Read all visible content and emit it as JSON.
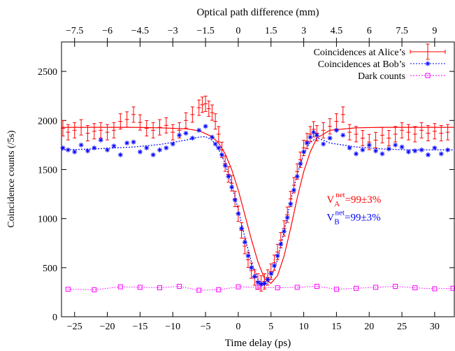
{
  "chart_data": {
    "type": "scatter",
    "top_axis_label": "Optical path difference (mm)",
    "xlabel": "Time delay (ps)",
    "ylabel": "Coincidence counts (/5s)",
    "xlim": [
      -27,
      33
    ],
    "ylim": [
      0,
      2800
    ],
    "x_ticks": [
      -25,
      -20,
      -15,
      -10,
      -5,
      0,
      5,
      10,
      15,
      20,
      25,
      30
    ],
    "x_tick_labels": [
      "−25",
      "−20",
      "−15",
      "−10",
      "−5",
      "0",
      "5",
      "10",
      "15",
      "20",
      "25",
      "30"
    ],
    "y_ticks": [
      0,
      500,
      1000,
      1500,
      2000,
      2500
    ],
    "y_tick_labels": [
      "0",
      "500",
      "1000",
      "1500",
      "2000",
      "2500"
    ],
    "top_ticks": [
      -7.5,
      -6,
      -4.5,
      -3,
      -1.5,
      0,
      1.5,
      3,
      4.5,
      6,
      7.5,
      9
    ],
    "top_tick_labels": [
      "−7.5",
      "−6",
      "−4.5",
      "−3",
      "−1.5",
      "0",
      "1.5",
      "3",
      "4.5",
      "6",
      "7.5",
      "9"
    ],
    "top_per_bottom": 0.3,
    "legend_position": "top-right",
    "series": [
      {
        "name": "Coincidences at Alice’s",
        "color": "#ff0000",
        "marker": "plus-errorbar",
        "line": "solid",
        "x": [
          -27,
          -26,
          -25,
          -24,
          -23,
          -22,
          -21,
          -20,
          -19,
          -18,
          -17,
          -16,
          -15,
          -14,
          -13,
          -12,
          -11,
          -10,
          -9,
          -8,
          -7,
          -6,
          -5.5,
          -5,
          -4.5,
          -4,
          -3.5,
          -3,
          -2.5,
          -2,
          -1.5,
          -1,
          -0.5,
          0,
          0.5,
          1,
          1.5,
          2,
          2.5,
          3,
          3.5,
          4,
          4.5,
          5,
          5.5,
          6,
          6.5,
          7,
          7.5,
          8,
          8.5,
          9,
          9.5,
          10,
          10.5,
          11,
          11.5,
          12,
          13,
          14,
          15,
          16,
          17,
          18,
          19,
          20,
          21,
          22,
          23,
          24,
          25,
          26,
          27,
          28,
          29,
          30,
          31,
          32
        ],
        "y": [
          1920,
          1880,
          1900,
          1930,
          1870,
          1890,
          1900,
          1880,
          1900,
          1990,
          2010,
          2060,
          1980,
          1920,
          1900,
          1930,
          1950,
          1880,
          1900,
          2000,
          2060,
          2130,
          2160,
          2170,
          2120,
          2080,
          1990,
          1860,
          1700,
          1560,
          1450,
          1360,
          1200,
          1050,
          880,
          720,
          580,
          470,
          400,
          360,
          340,
          360,
          400,
          460,
          550,
          660,
          780,
          900,
          1040,
          1200,
          1340,
          1480,
          1600,
          1720,
          1790,
          1860,
          1910,
          1870,
          1900,
          1940,
          1990,
          2060,
          1880,
          1860,
          1820,
          1780,
          1800,
          1850,
          1820,
          1860,
          1900,
          1880,
          1860,
          1900,
          1870,
          1890,
          1870,
          1880
        ]
      },
      {
        "name": "Coincidences at Bob’s",
        "color": "#0000ff",
        "marker": "asterisk",
        "line": "dotted",
        "x": [
          -27,
          -26,
          -25,
          -24,
          -23,
          -22,
          -21,
          -20,
          -19,
          -18,
          -17,
          -16,
          -15,
          -14,
          -13,
          -12,
          -11,
          -10,
          -9,
          -8,
          -7,
          -6,
          -5,
          -4,
          -3.5,
          -3,
          -2.5,
          -2,
          -1.5,
          -1,
          -0.5,
          0,
          0.5,
          1,
          1.5,
          2,
          2.5,
          3,
          3.5,
          4,
          4.5,
          5,
          5.5,
          6,
          6.5,
          7,
          7.5,
          8,
          8.5,
          9,
          9.5,
          10,
          10.5,
          11,
          11.5,
          12,
          13,
          14,
          15,
          16,
          17,
          18,
          19,
          20,
          21,
          22,
          23,
          24,
          25,
          26,
          27,
          28,
          29,
          30,
          31,
          32
        ],
        "y": [
          1720,
          1700,
          1680,
          1750,
          1690,
          1720,
          1800,
          1700,
          1740,
          1650,
          1770,
          1780,
          1680,
          1720,
          1650,
          1700,
          1720,
          1760,
          1850,
          1870,
          1820,
          1900,
          1940,
          1830,
          1760,
          1720,
          1650,
          1540,
          1430,
          1320,
          1190,
          1050,
          900,
          760,
          620,
          500,
          410,
          350,
          330,
          340,
          380,
          440,
          520,
          620,
          740,
          870,
          1010,
          1150,
          1290,
          1430,
          1560,
          1680,
          1770,
          1830,
          1880,
          1850,
          1760,
          1820,
          1900,
          1850,
          1720,
          1660,
          1700,
          1750,
          1690,
          1660,
          1710,
          1750,
          1730,
          1680,
          1690,
          1700,
          1650,
          1720,
          1660,
          1700
        ]
      },
      {
        "name": "Dark counts",
        "color": "#ff00ff",
        "marker": "square",
        "line": "dotted",
        "x": [
          -26,
          -22,
          -18,
          -15,
          -12,
          -9,
          -6,
          -3,
          0,
          3,
          6,
          9,
          12,
          15,
          18,
          21,
          24,
          27,
          30,
          33
        ],
        "y": [
          280,
          275,
          305,
          300,
          295,
          310,
          270,
          275,
          305,
          300,
          295,
          300,
          310,
          280,
          290,
          300,
          310,
          295,
          285,
          290
        ]
      }
    ],
    "fits": [
      {
        "series": "Coincidences at Alice’s",
        "color": "#ff0000",
        "style": "solid",
        "x": [
          -27,
          -22,
          -16,
          -12,
          -8,
          -6,
          -4,
          -3,
          -2,
          -1,
          0,
          1,
          2,
          3,
          4,
          5,
          6,
          7,
          8,
          9,
          10,
          11,
          12,
          14,
          18,
          22,
          26,
          33
        ],
        "y": [
          1930,
          1930,
          1930,
          1925,
          1915,
          1895,
          1835,
          1770,
          1660,
          1500,
          1290,
          1040,
          790,
          560,
          390,
          340,
          420,
          620,
          900,
          1210,
          1480,
          1680,
          1820,
          1900,
          1925,
          1930,
          1930,
          1930
        ]
      },
      {
        "series": "Coincidences at Bob’s",
        "color": "#0000ff",
        "style": "dotted",
        "x": [
          -27,
          -22,
          -16,
          -12,
          -8,
          -6,
          -5,
          -4,
          -3,
          -2,
          -1,
          0,
          1,
          2,
          3,
          4,
          5,
          6,
          7,
          8,
          9,
          10,
          11,
          12,
          13,
          14,
          18,
          22,
          26,
          33
        ],
        "y": [
          1700,
          1710,
          1730,
          1755,
          1800,
          1830,
          1835,
          1800,
          1710,
          1560,
          1350,
          1090,
          810,
          560,
          380,
          320,
          390,
          580,
          870,
          1180,
          1450,
          1660,
          1780,
          1820,
          1800,
          1770,
          1730,
          1710,
          1700,
          1700
        ]
      }
    ],
    "annotations": [
      {
        "main": "V",
        "sub": "A",
        "sup": "net",
        "rest": "=99±3%",
        "color": "#ff0000",
        "x": 13.5,
        "y": 1160
      },
      {
        "main": "V",
        "sub": "B",
        "sup": "net",
        "rest": "=99±3%",
        "color": "#0000ff",
        "x": 13.5,
        "y": 980
      }
    ]
  }
}
